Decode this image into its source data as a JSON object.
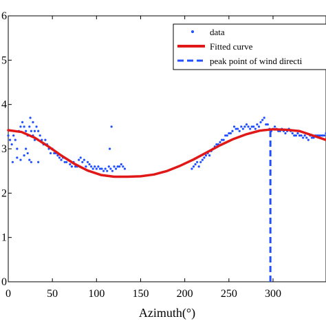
{
  "chart_data": {
    "type": "scatter",
    "title": "",
    "xlabel": "Azimuth(°)",
    "ylabel": "",
    "xlim": [
      0,
      360
    ],
    "ylim": [
      0,
      6
    ],
    "x_ticks": [
      0,
      50,
      100,
      150,
      200,
      250,
      300
    ],
    "y_ticks": [
      0,
      1,
      2,
      3,
      4,
      5,
      6
    ],
    "y_tick_labels": [
      "0",
      "1",
      "2",
      "3",
      "4",
      "5",
      "6"
    ],
    "grid": false,
    "legend": {
      "position": "top-right",
      "entries": [
        "data",
        "Fitted curve",
        "peak point of wind directi"
      ]
    },
    "series": [
      {
        "name": "data",
        "kind": "scatter",
        "color": "#1f4fff",
        "marker": "dot",
        "x": [
          0,
          2,
          4,
          6,
          8,
          10,
          12,
          14,
          16,
          18,
          20,
          22,
          24,
          26,
          28,
          30,
          32,
          34,
          36,
          38,
          40,
          42,
          44,
          46,
          48,
          50,
          52,
          54,
          56,
          58,
          60,
          62,
          64,
          66,
          68,
          70,
          72,
          74,
          76,
          78,
          80,
          82,
          84,
          86,
          88,
          90,
          92,
          94,
          96,
          98,
          100,
          102,
          104,
          106,
          108,
          110,
          112,
          114,
          116,
          118,
          120,
          122,
          124,
          126,
          128,
          130,
          132,
          208,
          210,
          212,
          214,
          216,
          218,
          220,
          222,
          224,
          226,
          228,
          230,
          232,
          234,
          236,
          238,
          240,
          242,
          244,
          246,
          248,
          250,
          252,
          254,
          256,
          258,
          260,
          262,
          264,
          266,
          268,
          270,
          272,
          274,
          276,
          278,
          280,
          282,
          284,
          286,
          288,
          290,
          292,
          294,
          296,
          298,
          300,
          302,
          304,
          306,
          308,
          310,
          312,
          314,
          316,
          318,
          320,
          322,
          324,
          326,
          328,
          330,
          332,
          334,
          336,
          338,
          340,
          342,
          344,
          346,
          348,
          350,
          352,
          354,
          356,
          358,
          360,
          5,
          10,
          14,
          18,
          20,
          22,
          25,
          28,
          30,
          34,
          26,
          24,
          117,
          115
        ],
        "y": [
          3.3,
          3.2,
          3.1,
          3.3,
          3.2,
          3.0,
          3.4,
          3.5,
          3.6,
          3.5,
          3.4,
          3.3,
          3.5,
          3.4,
          3.3,
          3.4,
          3.5,
          3.4,
          3.3,
          3.2,
          3.1,
          3.2,
          3.1,
          3.0,
          2.9,
          3.0,
          2.9,
          2.9,
          2.85,
          2.8,
          2.75,
          2.8,
          2.7,
          2.7,
          2.75,
          2.65,
          2.6,
          2.7,
          2.6,
          2.6,
          2.75,
          2.8,
          2.7,
          2.75,
          2.6,
          2.7,
          2.65,
          2.6,
          2.55,
          2.6,
          2.55,
          2.6,
          2.55,
          2.55,
          2.5,
          2.55,
          2.5,
          2.6,
          2.55,
          2.5,
          2.6,
          2.55,
          2.6,
          2.6,
          2.65,
          2.6,
          2.55,
          2.55,
          2.6,
          2.65,
          2.7,
          2.6,
          2.7,
          2.75,
          2.8,
          2.85,
          2.9,
          2.85,
          2.95,
          3.0,
          3.05,
          3.1,
          3.1,
          3.15,
          3.2,
          3.2,
          3.3,
          3.3,
          3.35,
          3.35,
          3.4,
          3.5,
          3.45,
          3.45,
          3.4,
          3.5,
          3.45,
          3.5,
          3.55,
          3.5,
          3.45,
          3.5,
          3.5,
          3.45,
          3.55,
          3.5,
          3.6,
          3.65,
          3.7,
          3.55,
          3.55,
          3.45,
          3.4,
          3.45,
          3.5,
          3.45,
          3.4,
          3.4,
          3.45,
          3.4,
          3.35,
          3.4,
          3.45,
          3.4,
          3.35,
          3.3,
          3.3,
          3.35,
          3.3,
          3.3,
          3.25,
          3.3,
          3.25,
          3.2,
          3.3,
          3.25,
          3.25,
          3.3,
          3.3,
          3.3,
          3.3,
          3.3,
          3.3,
          3.35,
          2.7,
          2.8,
          2.75,
          2.85,
          3.0,
          2.9,
          3.7,
          3.6,
          3.2,
          2.7,
          2.7,
          2.75,
          3.5,
          3.0
        ]
      },
      {
        "name": "Fitted curve",
        "kind": "line",
        "color": "#e01818",
        "x": [
          0,
          15,
          30,
          45,
          60,
          75,
          90,
          105,
          120,
          135,
          150,
          165,
          180,
          195,
          210,
          225,
          240,
          255,
          270,
          285,
          300,
          315,
          330,
          345,
          360
        ],
        "y": [
          3.42,
          3.38,
          3.25,
          3.06,
          2.85,
          2.66,
          2.51,
          2.41,
          2.37,
          2.37,
          2.38,
          2.42,
          2.5,
          2.62,
          2.76,
          2.92,
          3.08,
          3.22,
          3.33,
          3.41,
          3.44,
          3.43,
          3.4,
          3.3,
          3.2
        ]
      },
      {
        "name": "peak point of wind directi",
        "kind": "vline",
        "color": "#1f4fff",
        "x": [
          297,
          297
        ],
        "y": [
          0,
          3.44
        ]
      }
    ]
  }
}
